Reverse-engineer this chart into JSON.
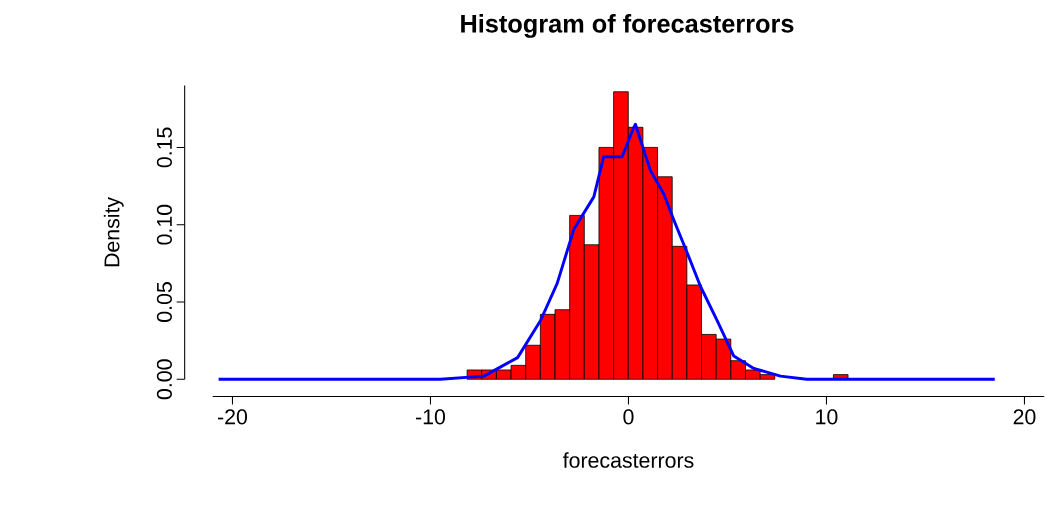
{
  "chart_data": {
    "type": "histogram",
    "title": "Histogram of forecasterrors",
    "xlabel": "forecasterrors",
    "ylabel": "Density",
    "bins": [
      -8.15,
      -7.41,
      -6.67,
      -5.93,
      -5.19,
      -4.45,
      -3.71,
      -2.97,
      -2.23,
      -1.49,
      -0.75,
      -0.01,
      0.73,
      1.47,
      2.21,
      2.95,
      3.69,
      4.43,
      5.17,
      5.91,
      6.65,
      7.39,
      8.13,
      8.87,
      9.61,
      10.35,
      11.09
    ],
    "values": [
      0.006,
      0.006,
      0.006,
      0.009,
      0.022,
      0.042,
      0.045,
      0.106,
      0.087,
      0.15,
      0.186,
      0.163,
      0.15,
      0.131,
      0.086,
      0.061,
      0.029,
      0.026,
      0.012,
      0.006,
      0.003,
      0,
      0,
      0,
      0,
      0.003
    ],
    "color": "#ff0000",
    "series": [
      {
        "type": "line",
        "color": "#0000ff",
        "x": [
          -20.7,
          -9.5,
          -7.3,
          -5.6,
          -4.44,
          -3.6,
          -2.76,
          -1.75,
          -1.25,
          -0.32,
          0.27,
          0.35,
          1.11,
          1.78,
          2.29,
          2.96,
          3.64,
          4.48,
          5.32,
          6.33,
          7.68,
          9.0,
          18.5
        ],
        "values": [
          0,
          0,
          0.002,
          0.014,
          0.038,
          0.062,
          0.097,
          0.118,
          0.144,
          0.144,
          0.163,
          0.165,
          0.135,
          0.12,
          0.103,
          0.082,
          0.06,
          0.038,
          0.015,
          0.007,
          0.002,
          0,
          0
        ]
      }
    ],
    "xlim": [
      -21,
      21
    ],
    "ylim": [
      0,
      0.19
    ],
    "xticks": [
      -20,
      -10,
      0,
      10,
      20
    ],
    "yticks": [
      {
        "value": 0,
        "label": "0.00"
      },
      {
        "value": 0.05,
        "label": "0.05"
      },
      {
        "value": 0.1,
        "label": "0.10"
      },
      {
        "value": 0.15,
        "label": "0.15"
      }
    ],
    "grid": false
  }
}
